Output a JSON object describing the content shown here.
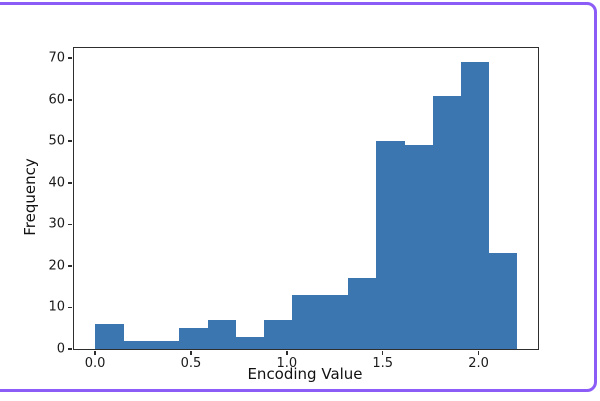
{
  "frame": {
    "border_color": "#8b5cf6"
  },
  "chart_data": {
    "type": "bar",
    "chart_kind": "histogram",
    "title": "",
    "xlabel": "Encoding Value",
    "ylabel": "Frequency",
    "bin_start": 0.0,
    "bin_end": 2.2,
    "bin_count": 15,
    "bin_width": 0.14667,
    "values": [
      6,
      2,
      2,
      5,
      7,
      3,
      7,
      13,
      13,
      17,
      50,
      49,
      61,
      69,
      23
    ],
    "xlim": [
      -0.11,
      2.31
    ],
    "ylim": [
      0,
      72.45
    ],
    "x_tick_labels": [
      "0.0",
      "0.5",
      "1.0",
      "1.5",
      "2.0"
    ],
    "x_tick_values": [
      0,
      0.5,
      1.0,
      1.5,
      2.0
    ],
    "y_tick_labels": [
      "0",
      "10",
      "20",
      "30",
      "40",
      "50",
      "60",
      "70"
    ],
    "y_tick_values": [
      0,
      10,
      20,
      30,
      40,
      50,
      60,
      70
    ],
    "bar_color": "#3c76b0",
    "spine_color": "#2e2e2e",
    "grid": false,
    "legend": null
  }
}
